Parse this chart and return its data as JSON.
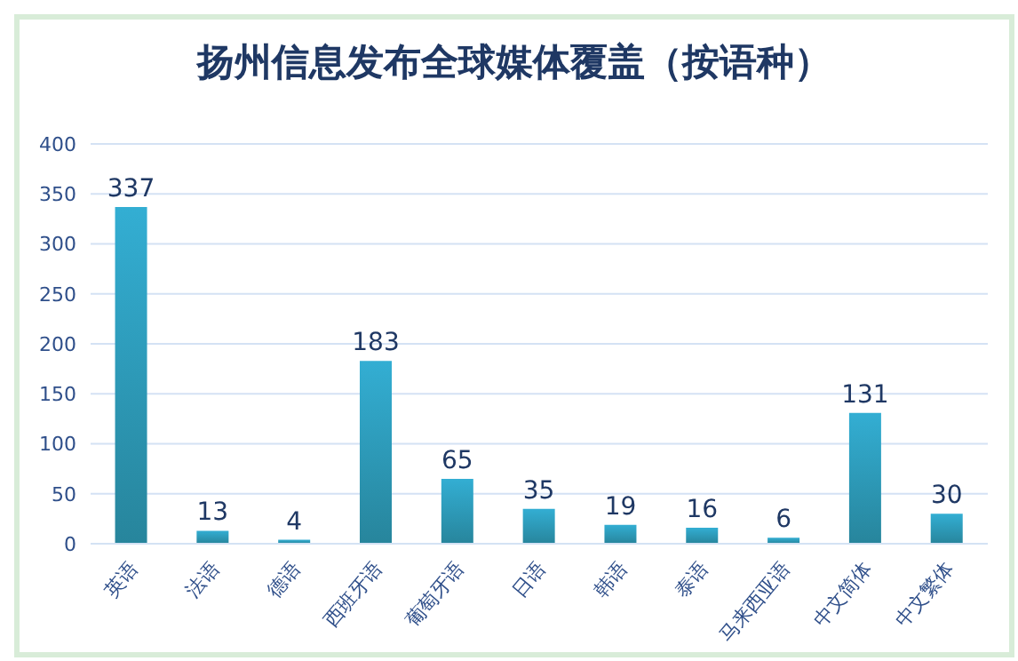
{
  "chart_data": {
    "type": "bar",
    "title": "扬州信息发布全球媒体覆盖（按语种）",
    "categories": [
      "英语",
      "法语",
      "德语",
      "西班牙语",
      "葡萄牙语",
      "日语",
      "韩语",
      "泰语",
      "马来西亚语",
      "中文简体",
      "中文繁体"
    ],
    "values": [
      337,
      13,
      4,
      183,
      65,
      35,
      19,
      16,
      6,
      131,
      30
    ],
    "color": "#33aed3",
    "ylim": [
      0,
      400
    ],
    "yticks": [
      0,
      50,
      100,
      150,
      200,
      250,
      300,
      350,
      400
    ],
    "grid": "y",
    "data_labels": true
  }
}
